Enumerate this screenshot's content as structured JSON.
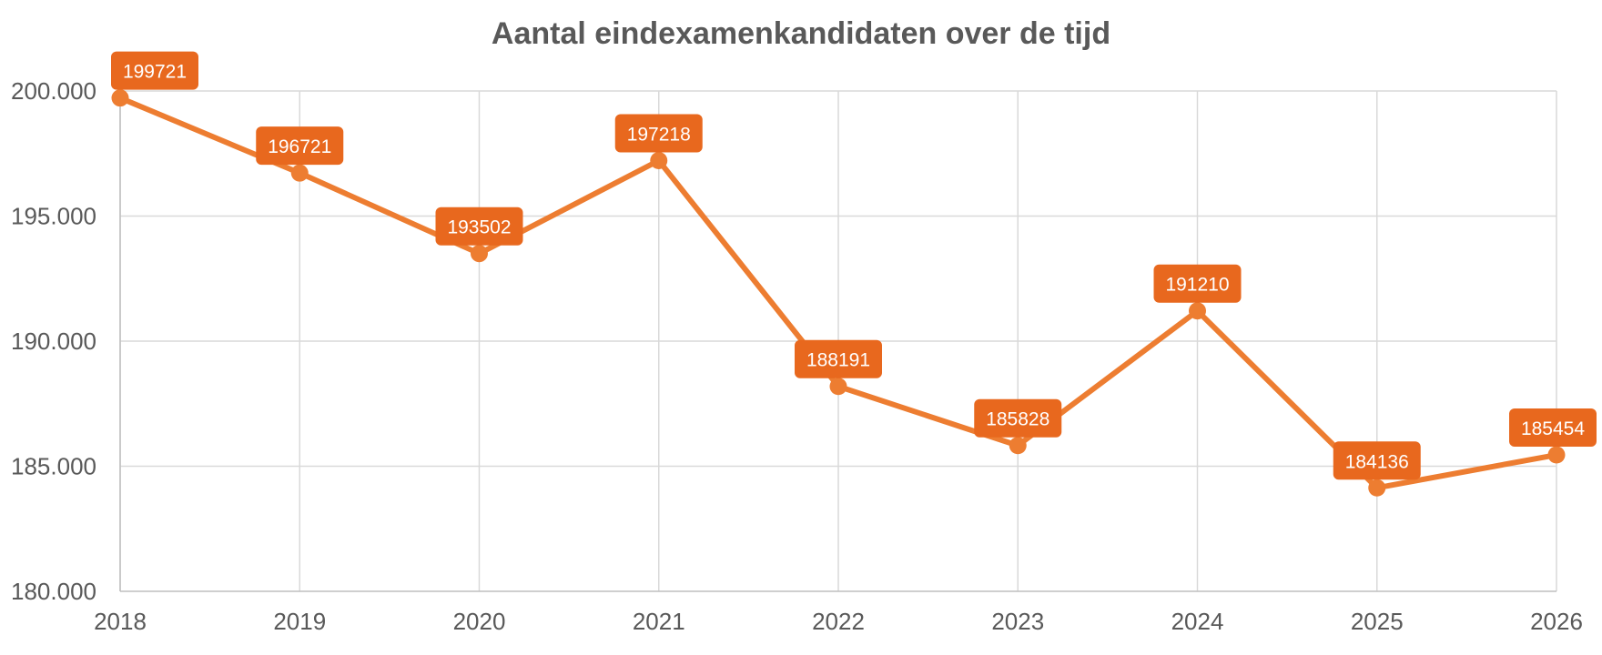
{
  "chart_data": {
    "type": "line",
    "title": "Aantal eindexamenkandidaten over de tijd",
    "xlabel": "",
    "ylabel": "",
    "categories": [
      "2018",
      "2019",
      "2020",
      "2021",
      "2022",
      "2023",
      "2024",
      "2025",
      "2026"
    ],
    "series": [
      {
        "values": [
          199721,
          196721,
          193502,
          197218,
          188191,
          185828,
          191210,
          184136,
          185454
        ]
      }
    ],
    "data_labels": [
      "199721",
      "196721",
      "193502",
      "197218",
      "188191",
      "185828",
      "191210",
      "184136",
      "185454"
    ],
    "ylim": [
      180000,
      200000
    ],
    "yticks": [
      180000,
      185000,
      190000,
      195000,
      200000
    ],
    "ytick_labels": [
      "180.000",
      "185.000",
      "190.000",
      "195.000",
      "200.000"
    ],
    "grid": true,
    "colors": {
      "line": "#ED7D31",
      "label_bg": "#E8681E",
      "grid": "#D9D9D9",
      "text": "#595959"
    }
  }
}
